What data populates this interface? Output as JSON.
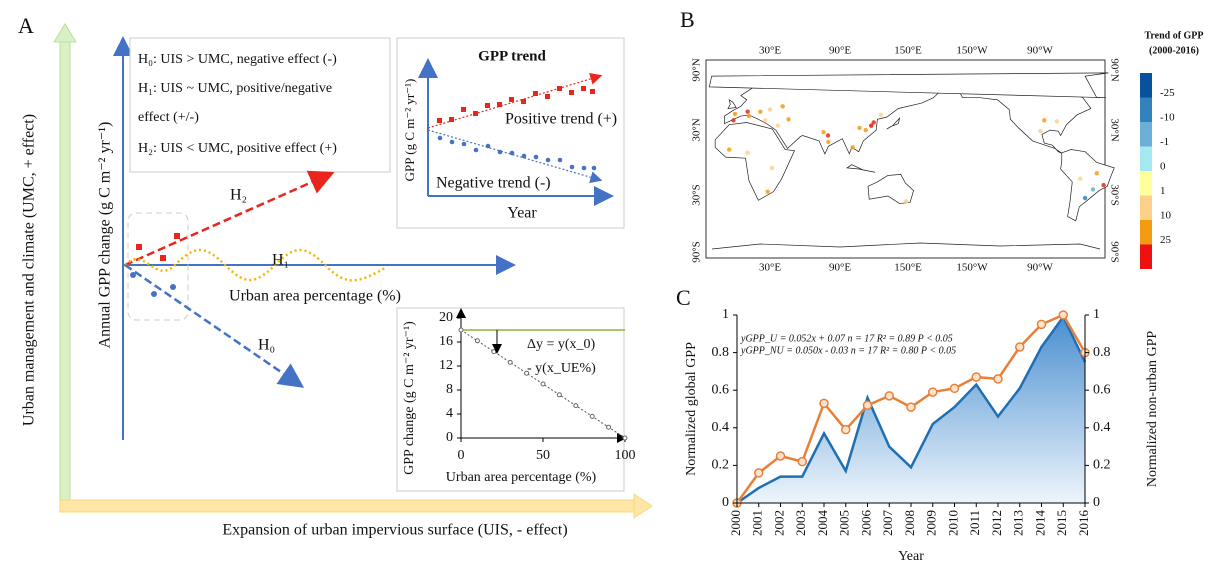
{
  "panel_a": {
    "label": "A",
    "outer_y_label": "Urban management and climate (UMC, + effect)",
    "outer_x_label": "Expansion of urban impervious surface (UIS, - effect)",
    "y_label": "Annual GPP change (g C m⁻² yr⁻¹)",
    "x_label": "Urban area percentage (%)",
    "hypotheses": [
      "H₀: UIS > UMC, negative effect (-)",
      "H₁: UIS ~ UMC, positive/negative",
      "effect (+/-)",
      "H₂: UIS < UMC, positive effect (+)"
    ],
    "h2": "H₂",
    "h1": "H₁",
    "h0": "H₀",
    "trend_box": {
      "title": "GPP trend",
      "y_label": "GPP (g C m⁻² yr⁻¹)",
      "x_label": "Year",
      "positive": "Positive trend (+)",
      "negative": "Negative trend (-)"
    }
  },
  "panel_b": {
    "label": "B",
    "lon_labels": [
      "30°E",
      "90°E",
      "150°E",
      "150°W",
      "90°W"
    ],
    "lat_labels": [
      "90°N",
      "30°N",
      "30°S",
      "90°S"
    ],
    "legend": {
      "title": [
        "Trend of GPP",
        "(2000-2016)"
      ],
      "labels": [
        -25,
        -10,
        -1,
        0,
        1,
        10,
        25
      ],
      "colors": [
        "#08519c",
        "#3182bd",
        "#6baed6",
        "#a6e8f0",
        "#ffff9c",
        "#fdd08a",
        "#f39c12",
        "#ee1111"
      ]
    }
  },
  "chart_data": [
    {
      "type": "scatter",
      "xlabel": "Urban area percentage (%)",
      "ylabel": "GPP change (g C m⁻² yr⁻¹)",
      "x": [
        0,
        10,
        20,
        30,
        40,
        50,
        60,
        70,
        80,
        90,
        100
      ],
      "values": [
        18,
        16.2,
        14.4,
        12.6,
        10.8,
        9,
        7.2,
        5.4,
        3.6,
        1.8,
        0
      ],
      "xlim": [
        0,
        100
      ],
      "xticks": [
        0,
        50,
        100
      ],
      "ylim": [
        0,
        20
      ],
      "yticks": [
        0,
        4,
        8,
        12,
        16,
        20
      ],
      "hline": 18,
      "hline_color": "#8db33a",
      "color": "#666666",
      "annotations": [
        "Δy = y(x_0)",
        "- y(x_UE%)"
      ]
    },
    {
      "type": "line",
      "label": "C",
      "xlabel": "Year",
      "ylabel": "Normalized global GPP",
      "y2label": "Normalized non-urban GPP",
      "categories": [
        "2000",
        "2001",
        "2002",
        "2003",
        "2004",
        "2005",
        "2006",
        "2007",
        "2008",
        "2009",
        "2010",
        "2011",
        "2012",
        "2013",
        "2014",
        "2015",
        "2016"
      ],
      "series": [
        {
          "color": "#1f6fb2",
          "fill": true,
          "values": [
            0,
            0.08,
            0.14,
            0.14,
            0.37,
            0.17,
            0.56,
            0.3,
            0.19,
            0.42,
            0.51,
            0.63,
            0.46,
            0.61,
            0.83,
            0.99,
            0.75
          ]
        },
        {
          "color": "#e8803a",
          "axis": "y2",
          "marker": true,
          "values": [
            0,
            0.16,
            0.25,
            0.22,
            0.53,
            0.39,
            0.52,
            0.57,
            0.51,
            0.59,
            0.61,
            0.67,
            0.66,
            0.83,
            0.95,
            1.0,
            0.8
          ]
        }
      ],
      "ylim": [
        0,
        1
      ],
      "yticks": [
        0,
        0.2,
        0.4,
        0.6,
        0.8,
        1
      ],
      "y2lim": [
        0,
        1
      ],
      "y2ticks": [
        0,
        0.2,
        0.4,
        0.6,
        0.8,
        1
      ],
      "annotations": [
        "yGPP_U = 0.052x + 0.07   n = 17   R² = 0.89   P < 0.05",
        "yGPP_NU = 0.050x - 0.03   n = 17   R² = 0.80   P < 0.05"
      ]
    }
  ]
}
